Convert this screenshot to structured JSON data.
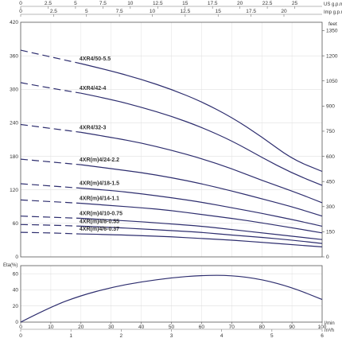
{
  "chart_data": [
    {
      "type": "line",
      "top_axis_1": {
        "unit": "US g.p.m",
        "ticks": [
          "0",
          "2.5",
          "5",
          "7.5",
          "10",
          "12.5",
          "15",
          "17.5",
          "20",
          "22.5",
          "25"
        ]
      },
      "top_axis_2": {
        "unit": "Imp g.p.m",
        "ticks": [
          "0",
          "2.5",
          "5",
          "7.5",
          "10",
          "12.5",
          "15",
          "17.5",
          "20",
          "25"
        ]
      },
      "y_left": {
        "ticks": [
          "0",
          "60",
          "120",
          "180",
          "240",
          "300",
          "360",
          "420"
        ],
        "ylim": [
          0,
          420
        ]
      },
      "y_right": {
        "unit": "feet",
        "ticks": [
          "0",
          "150",
          "300",
          "450",
          "600",
          "750",
          "900",
          "1050",
          "1200",
          "1350"
        ]
      },
      "xlim": [
        0,
        100
      ],
      "series": [
        {
          "name": "4XR4/50-5.5",
          "x": [
            0,
            10,
            20,
            30,
            40,
            50,
            60,
            70,
            80,
            90,
            100
          ],
          "values": [
            370,
            358,
            346,
            333,
            318,
            300,
            278,
            250,
            215,
            175,
            153
          ]
        },
        {
          "name": "4XR4/42-4",
          "x": [
            0,
            10,
            20,
            30,
            40,
            50,
            60,
            70,
            80,
            90,
            100
          ],
          "values": [
            312,
            302,
            293,
            282,
            268,
            252,
            232,
            208,
            178,
            150,
            128
          ]
        },
        {
          "name": "4XR4/32-3",
          "x": [
            0,
            10,
            20,
            30,
            40,
            50,
            60,
            70,
            80,
            90,
            100
          ],
          "values": [
            237,
            230,
            223,
            214,
            204,
            191,
            176,
            158,
            137,
            118,
            97
          ]
        },
        {
          "name": "4XR(m)4/24-2.2",
          "x": [
            0,
            10,
            20,
            30,
            40,
            50,
            60,
            70,
            80,
            90,
            100
          ],
          "values": [
            175,
            170,
            165,
            158,
            151,
            142,
            131,
            118,
            104,
            90,
            73
          ]
        },
        {
          "name": "4XR(m)4/18-1.5",
          "x": [
            0,
            10,
            20,
            30,
            40,
            50,
            60,
            70,
            80,
            90,
            100
          ],
          "values": [
            131,
            127,
            123,
            119,
            113,
            106,
            98,
            88,
            78,
            67,
            55
          ]
        },
        {
          "name": "4XR(m)4/14-1.1",
          "x": [
            0,
            10,
            20,
            30,
            40,
            50,
            60,
            70,
            80,
            90,
            100
          ],
          "values": [
            102,
            99,
            96,
            92,
            88,
            83,
            76,
            69,
            61,
            52,
            43
          ]
        },
        {
          "name": "4XR(m)4/10-0.75",
          "x": [
            0,
            10,
            20,
            30,
            40,
            50,
            60,
            70,
            80,
            90,
            100
          ],
          "values": [
            73,
            71,
            69,
            66,
            63,
            59,
            55,
            49,
            43,
            37,
            31
          ]
        },
        {
          "name": "4XR(m)4/8-0.55",
          "x": [
            0,
            10,
            20,
            30,
            40,
            50,
            60,
            70,
            80,
            90,
            100
          ],
          "values": [
            58,
            57,
            55,
            53,
            50,
            47,
            44,
            39,
            35,
            30,
            24
          ]
        },
        {
          "name": "4XR(m)4/6-0.37",
          "x": [
            0,
            10,
            20,
            30,
            40,
            50,
            60,
            70,
            80,
            90,
            100
          ],
          "values": [
            44,
            43,
            41,
            40,
            38,
            36,
            33,
            30,
            26,
            22,
            18
          ]
        }
      ]
    },
    {
      "type": "line",
      "ylabel": "Eta(%)",
      "y_ticks": [
        "0",
        "20",
        "40",
        "60"
      ],
      "ylim": [
        0,
        70
      ],
      "x_bottom_1": {
        "unit": "l/min",
        "ticks": [
          "0",
          "10",
          "20",
          "30",
          "40",
          "50",
          "60",
          "70",
          "80",
          "90",
          "100"
        ]
      },
      "x_bottom_2": {
        "unit": "m³/h",
        "ticks": [
          "0",
          "1",
          "2",
          "3",
          "4",
          "5",
          "6"
        ]
      },
      "xlim": [
        0,
        100
      ],
      "series": [
        {
          "x": [
            0,
            10,
            20,
            30,
            40,
            50,
            60,
            70,
            80,
            90,
            100
          ],
          "values": [
            0,
            19,
            33,
            43,
            50,
            55,
            58,
            58,
            53,
            43,
            28
          ]
        }
      ]
    }
  ]
}
